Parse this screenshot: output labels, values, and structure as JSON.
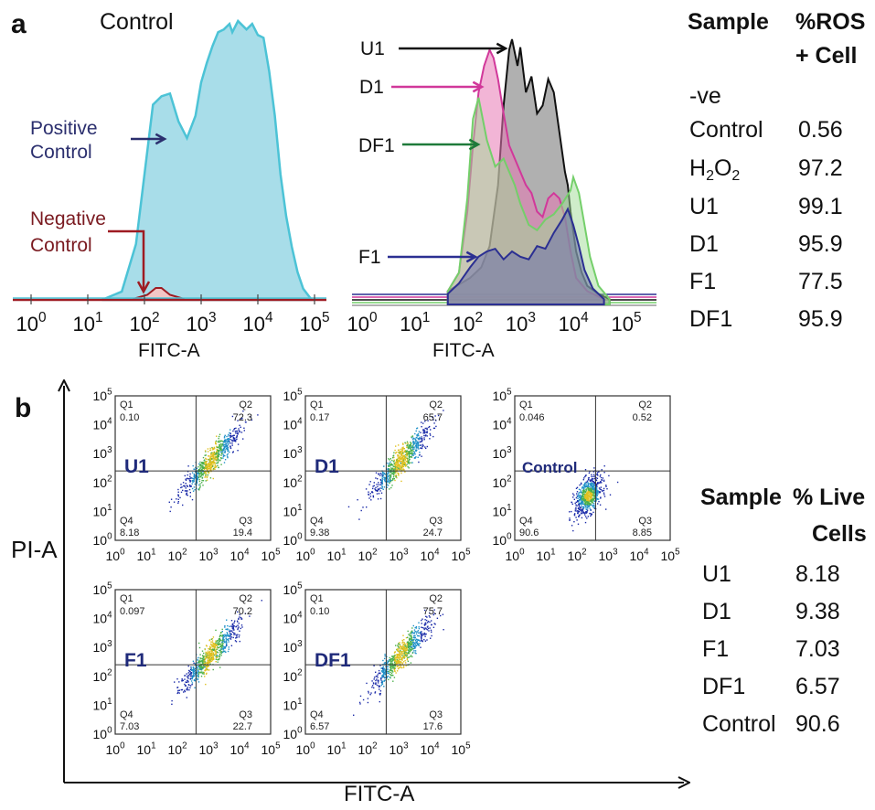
{
  "panel_a": {
    "letter": "a",
    "control_title": "Control",
    "positive_label": [
      "Positive",
      "Control"
    ],
    "negative_label": [
      "Negative",
      "Control"
    ],
    "xlabel": "FITC-A",
    "overlay_series_labels": [
      "U1",
      "D1",
      "DF1",
      "F1"
    ],
    "table": {
      "headers": [
        "Sample",
        "%ROS",
        "+ Cell"
      ],
      "rows": [
        {
          "sample": "-ve",
          "value": ""
        },
        {
          "sample": "Control",
          "value": "0.56"
        },
        {
          "sample": "H2O2",
          "value": "97.2"
        },
        {
          "sample": "U1",
          "value": "99.1"
        },
        {
          "sample": "D1",
          "value": "95.9"
        },
        {
          "sample": "F1",
          "value": "77.5"
        },
        {
          "sample": "DF1",
          "value": "95.9"
        }
      ]
    }
  },
  "panel_b": {
    "letter": "b",
    "ylabel": "PI-A",
    "xlabel": "FITC-A",
    "table": {
      "headers": [
        "Sample",
        "% Live",
        "Cells"
      ],
      "rows": [
        {
          "sample": "U1",
          "value": "8.18"
        },
        {
          "sample": "D1",
          "value": "9.38"
        },
        {
          "sample": "F1",
          "value": "7.03"
        },
        {
          "sample": "DF1",
          "value": "6.57"
        },
        {
          "sample": "Control",
          "value": "90.6"
        }
      ]
    }
  },
  "colors": {
    "positive_fill": "#a8dde9",
    "positive_line": "#4cc3d6",
    "negative": "#9e1b22",
    "u1": "#111111",
    "d1": "#d1389a",
    "df1": "#74cf6a",
    "f1": "#2b2f92",
    "scatter_label": "#1f2a7a"
  },
  "chart_data": [
    {
      "type": "area",
      "name": "Control histogram",
      "xlabel": "FITC-A",
      "xscale": "log",
      "xlim": [
        1,
        100000
      ],
      "ticks": [
        "10^0",
        "10^1",
        "10^2",
        "10^3",
        "10^4",
        "10^5"
      ],
      "series": [
        {
          "name": "Positive Control",
          "log_x": [
            1.25,
            1.6,
            1.85,
            2.0,
            2.15,
            2.3,
            2.45,
            2.6,
            2.75,
            2.9,
            3.0,
            3.1,
            3.2,
            3.3,
            3.4,
            3.5,
            3.55,
            3.65,
            3.8,
            3.9,
            4.0,
            4.1,
            4.2,
            4.3,
            4.4,
            4.5,
            4.6,
            4.7,
            4.8,
            4.95
          ],
          "y": [
            0,
            0.03,
            0.2,
            0.45,
            0.7,
            0.73,
            0.74,
            0.64,
            0.58,
            0.66,
            0.78,
            0.85,
            0.91,
            0.96,
            0.97,
            0.99,
            0.96,
            1.0,
            0.97,
            0.99,
            0.95,
            0.94,
            0.82,
            0.66,
            0.45,
            0.3,
            0.19,
            0.1,
            0.04,
            0
          ]
        },
        {
          "name": "Negative Control",
          "log_x": [
            1.8,
            2.05,
            2.2,
            2.3,
            2.45,
            2.7
          ],
          "y": [
            0,
            0.015,
            0.04,
            0.04,
            0.015,
            0
          ]
        }
      ]
    },
    {
      "type": "area",
      "name": "Overlay histogram",
      "xlabel": "FITC-A",
      "xscale": "log",
      "xlim": [
        1,
        100000
      ],
      "ticks": [
        "10^0",
        "10^1",
        "10^2",
        "10^3",
        "10^4",
        "10^5"
      ],
      "series": [
        {
          "name": "U1",
          "log_x": [
            1.8,
            2.2,
            2.4,
            2.55,
            2.7,
            2.8,
            2.9,
            2.95,
            3.05,
            3.1,
            3.2,
            3.3,
            3.4,
            3.5,
            3.6,
            3.7,
            3.8,
            3.9,
            3.95,
            4.0,
            4.1,
            4.2,
            4.3,
            4.5,
            4.7
          ],
          "y": [
            0.05,
            0.1,
            0.14,
            0.22,
            0.45,
            0.75,
            0.96,
            1.0,
            0.9,
            0.97,
            0.8,
            0.86,
            0.72,
            0.75,
            0.85,
            0.8,
            0.65,
            0.5,
            0.45,
            0.35,
            0.2,
            0.12,
            0.07,
            0.04,
            0.02
          ]
        },
        {
          "name": "D1",
          "log_x": [
            1.8,
            2.0,
            2.15,
            2.25,
            2.35,
            2.45,
            2.55,
            2.62,
            2.7,
            2.8,
            2.9,
            3.0,
            3.1,
            3.2,
            3.3,
            3.4,
            3.5,
            3.6,
            3.7,
            3.8,
            3.9,
            4.0,
            4.1,
            4.3,
            4.6
          ],
          "y": [
            0.05,
            0.12,
            0.35,
            0.6,
            0.8,
            0.9,
            0.96,
            0.93,
            0.85,
            0.72,
            0.6,
            0.55,
            0.5,
            0.45,
            0.42,
            0.35,
            0.33,
            0.4,
            0.42,
            0.4,
            0.33,
            0.2,
            0.1,
            0.05,
            0.02
          ]
        },
        {
          "name": "DF1",
          "log_x": [
            1.8,
            2.0,
            2.15,
            2.25,
            2.35,
            2.5,
            2.65,
            2.8,
            2.9,
            3.0,
            3.1,
            3.25,
            3.4,
            3.55,
            3.7,
            3.85,
            4.0,
            4.05,
            4.15,
            4.25,
            4.35,
            4.5,
            4.7
          ],
          "y": [
            0.05,
            0.12,
            0.4,
            0.7,
            0.78,
            0.62,
            0.52,
            0.55,
            0.5,
            0.45,
            0.38,
            0.3,
            0.28,
            0.32,
            0.34,
            0.38,
            0.43,
            0.48,
            0.42,
            0.3,
            0.18,
            0.07,
            0.02
          ]
        },
        {
          "name": "F1",
          "log_x": [
            1.8,
            2.0,
            2.2,
            2.35,
            2.5,
            2.65,
            2.8,
            2.95,
            3.1,
            3.25,
            3.4,
            3.55,
            3.7,
            3.85,
            3.95,
            4.05,
            4.15,
            4.25,
            4.4,
            4.6
          ],
          "y": [
            0.04,
            0.08,
            0.14,
            0.18,
            0.2,
            0.21,
            0.17,
            0.2,
            0.18,
            0.17,
            0.22,
            0.21,
            0.27,
            0.32,
            0.36,
            0.3,
            0.22,
            0.13,
            0.06,
            0.02
          ]
        }
      ]
    },
    {
      "type": "scatter",
      "name": "Annexin V / PI quadrant plots",
      "xlabel": "FITC-A",
      "ylabel": "PI-A",
      "xscale": "log",
      "yscale": "log",
      "xlim": [
        1,
        100000
      ],
      "ylim": [
        1,
        100000
      ],
      "ticks": [
        "10^0",
        "10^1",
        "10^2",
        "10^3",
        "10^4",
        "10^5"
      ],
      "gate_log": {
        "x": 2.6,
        "y": 2.4
      },
      "plots": [
        {
          "label": "U1",
          "Q1": "0.10",
          "Q2": "72.3",
          "Q3": "19.4",
          "Q4": "8.18"
        },
        {
          "label": "D1",
          "Q1": "0.17",
          "Q2": "65.7",
          "Q3": "24.7",
          "Q4": "9.38"
        },
        {
          "label": "Control",
          "Q1": "0.046",
          "Q2": "0.52",
          "Q3": "8.85",
          "Q4": "90.6"
        },
        {
          "label": "F1",
          "Q1": "0.097",
          "Q2": "70.2",
          "Q3": "22.7",
          "Q4": "7.03"
        },
        {
          "label": "DF1",
          "Q1": "0.10",
          "Q2": "75.7",
          "Q3": "17.6",
          "Q4": "6.57"
        }
      ]
    }
  ]
}
